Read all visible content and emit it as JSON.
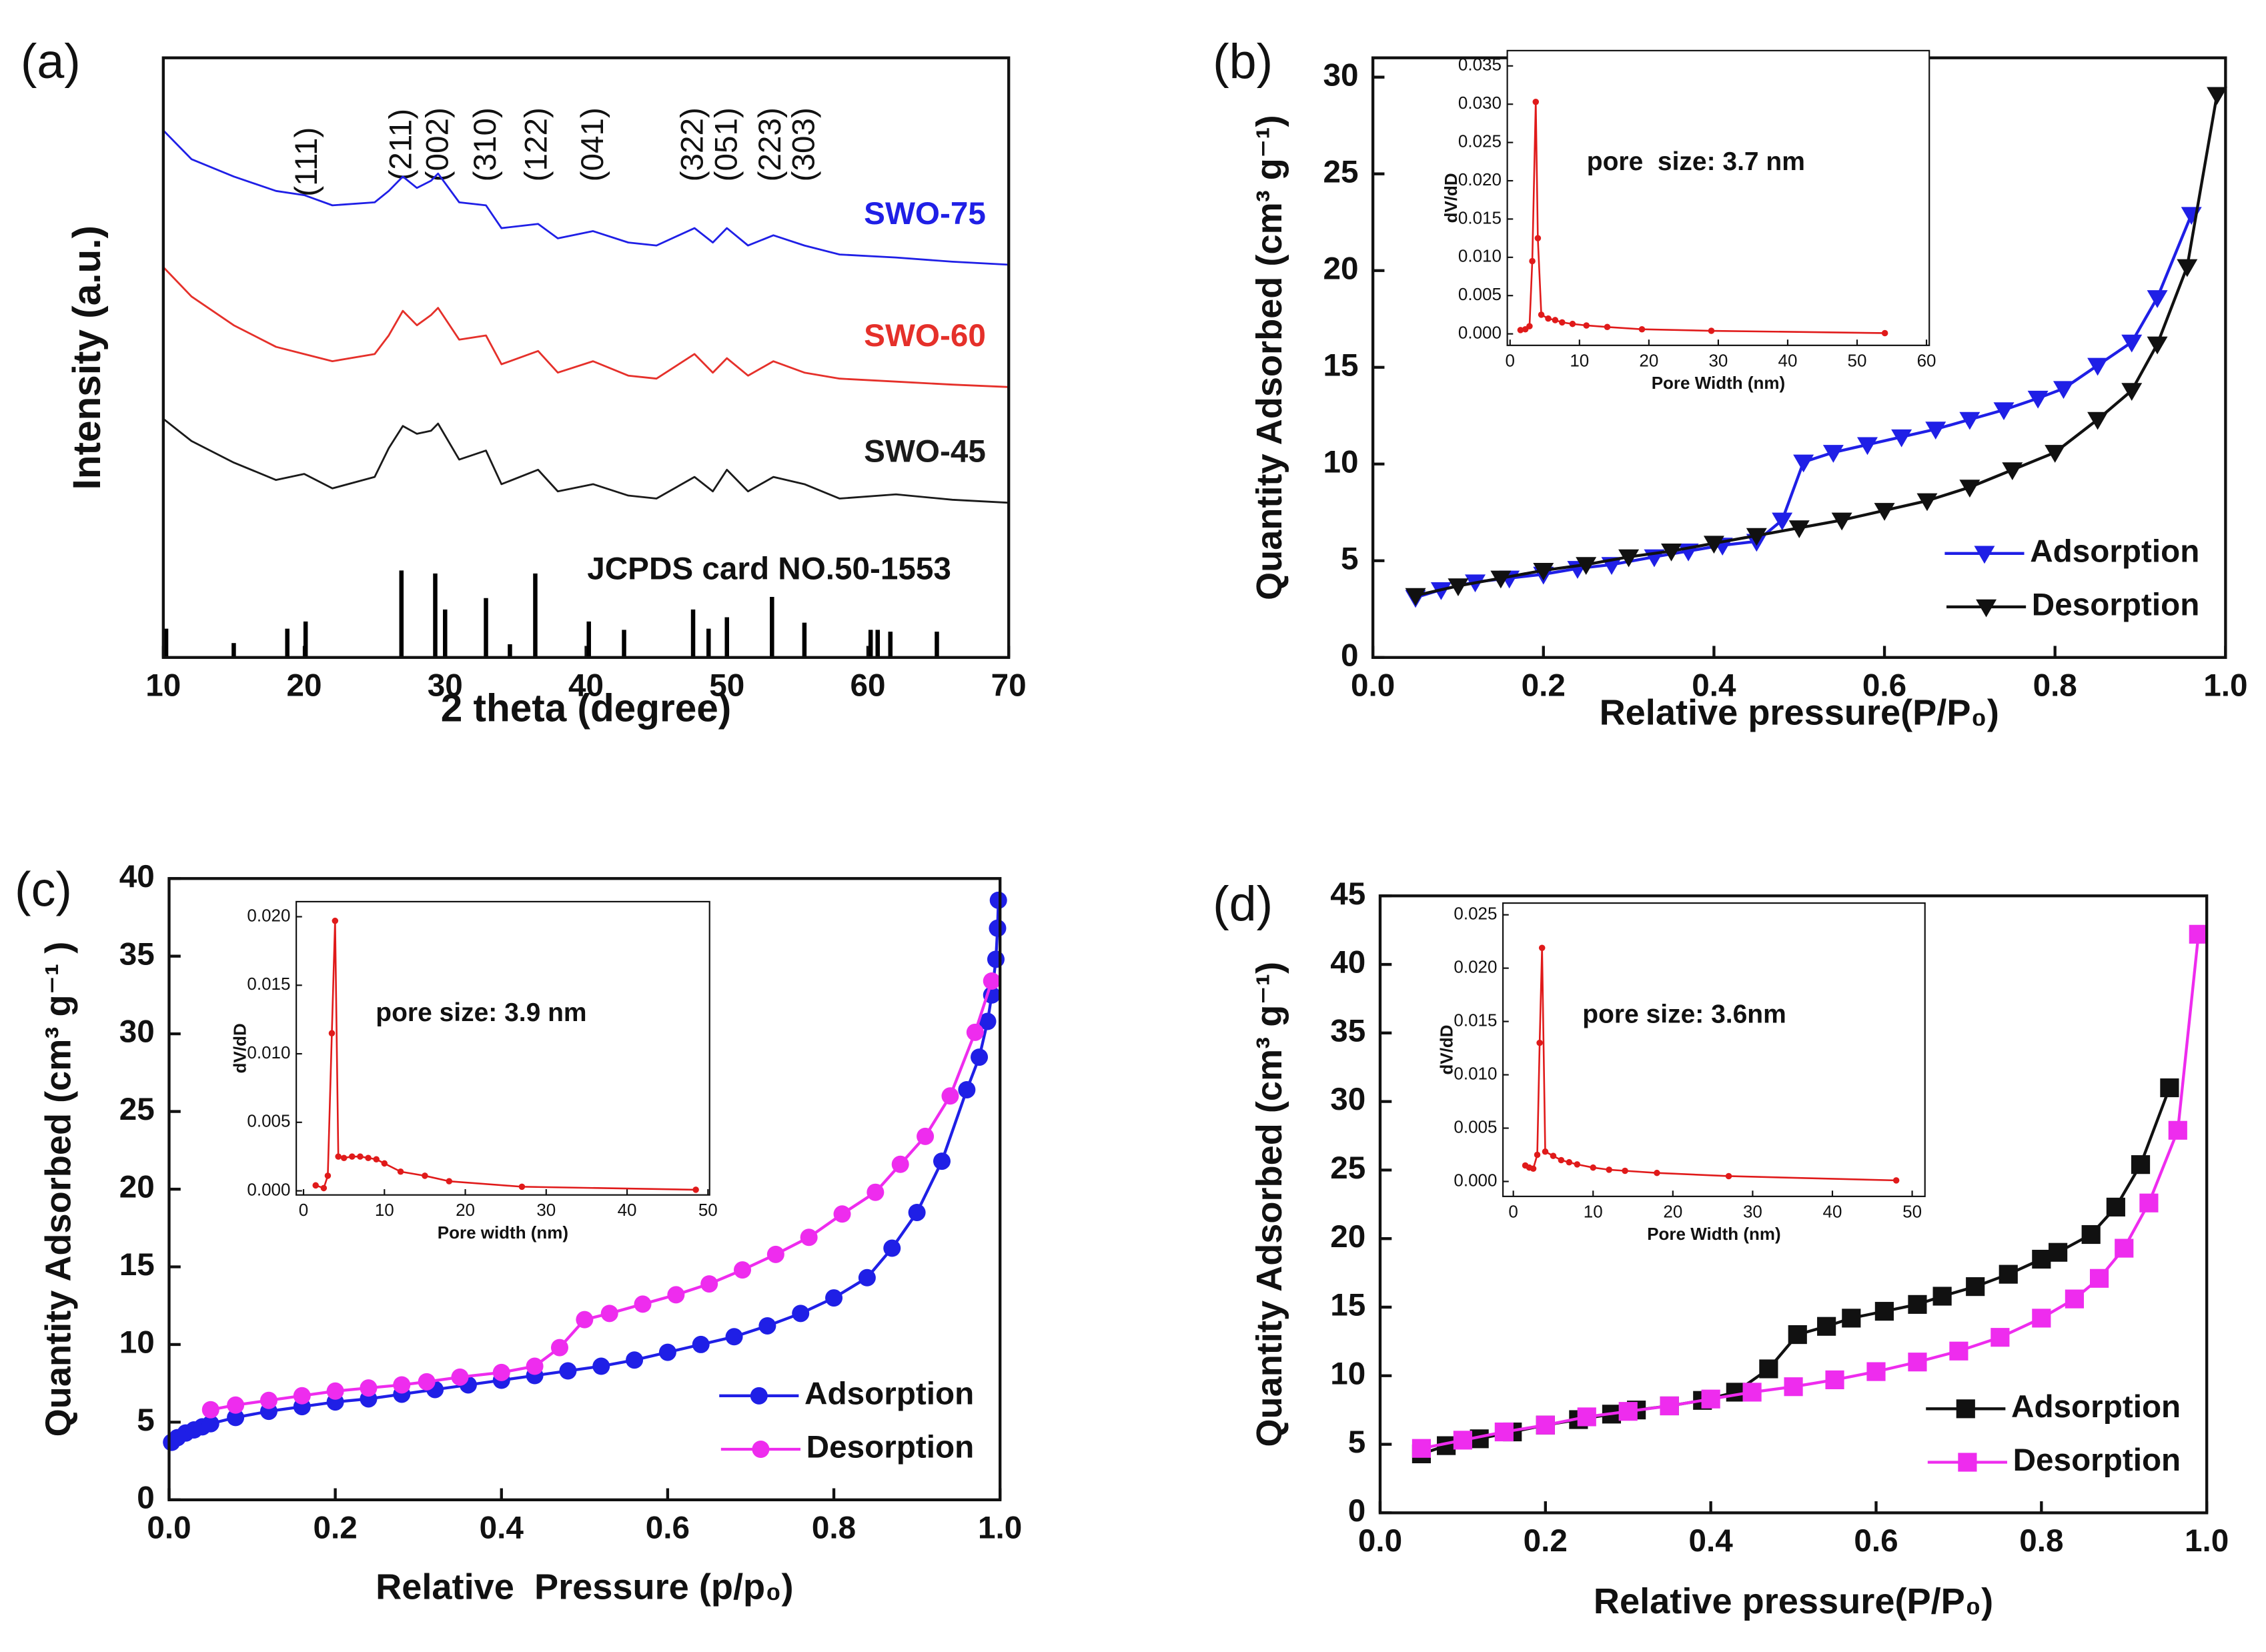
{
  "chart_data": [
    {
      "type": "line",
      "label": "(a)",
      "x_label": "2 theta (degree)",
      "y_label": "Intensity (a.u.)",
      "xlim": [
        10,
        70
      ],
      "xticks": [
        10,
        20,
        30,
        40,
        50,
        60,
        70
      ],
      "ylim": [
        0,
        100
      ],
      "x": [
        10,
        12,
        15,
        18,
        20,
        22,
        25,
        26,
        27,
        28,
        29,
        29.5,
        31,
        32.9,
        34,
        36.6,
        38,
        40.5,
        43,
        45,
        47.7,
        49,
        50,
        51.5,
        53.3,
        55.5,
        58,
        62,
        66,
        70
      ],
      "series": [
        {
          "name": "SWO-75",
          "color": "#1f1fe6",
          "values": [
            87.9,
            83.1,
            80.2,
            77.8,
            77.1,
            75.4,
            75.9,
            77.8,
            80.2,
            78.3,
            79.5,
            80.7,
            75.9,
            75.4,
            71.6,
            72.3,
            69.9,
            71.1,
            69.2,
            68.7,
            71.6,
            69.2,
            71.6,
            68.7,
            70.4,
            68.7,
            67.2,
            66.7,
            66.0,
            65.5
          ]
        },
        {
          "name": "SWO-60",
          "color": "#e5302a",
          "values": [
            65.1,
            60.2,
            55.4,
            51.8,
            50.6,
            49.4,
            50.6,
            53.7,
            57.8,
            55.4,
            57.1,
            58.3,
            53.0,
            53.7,
            48.9,
            51.1,
            47.5,
            49.4,
            47.0,
            46.5,
            50.6,
            47.5,
            49.9,
            47.0,
            49.4,
            47.5,
            46.5,
            46.0,
            45.5,
            45.1
          ]
        },
        {
          "name": "SWO-45",
          "color": "#1a1a1a",
          "values": [
            39.8,
            36.1,
            32.5,
            29.6,
            30.6,
            28.2,
            30.1,
            34.9,
            38.6,
            37.3,
            37.8,
            39.0,
            33.0,
            34.5,
            28.9,
            31.3,
            27.7,
            28.9,
            27.0,
            26.5,
            30.1,
            27.7,
            31.3,
            27.7,
            30.1,
            28.9,
            26.5,
            27.2,
            26.3,
            25.8
          ]
        }
      ],
      "reference": {
        "name": "JCPDS card NO.50-1553",
        "color": "#000000",
        "x": [
          10.2,
          15,
          18.8,
          20.1,
          26.9,
          29.3,
          30.0,
          32.9,
          34.6,
          36.4,
          40.2,
          42.7,
          47.6,
          48.7,
          50.0,
          53.2,
          55.5,
          60.2,
          60.7,
          61.6,
          64.9
        ],
        "values": [
          4.8,
          2.4,
          4.8,
          6.0,
          14.5,
          14.0,
          8.0,
          9.9,
          2.2,
          14.0,
          6.0,
          4.6,
          8.0,
          4.8,
          6.7,
          10.1,
          5.8,
          4.6,
          4.6,
          4.3,
          4.3
        ]
      },
      "annotations": [
        {
          "text": "(111)",
          "x": 20.3
        },
        {
          "text": "(211)",
          "x": 27.0
        },
        {
          "text": "(002)",
          "x": 29.6
        },
        {
          "text": "(310)",
          "x": 33.0
        },
        {
          "text": "(122)",
          "x": 36.6
        },
        {
          "text": "(041)",
          "x": 40.6
        },
        {
          "text": "(322)",
          "x": 47.7
        },
        {
          "text": "(051)",
          "x": 50.1
        },
        {
          "text": "(223)",
          "x": 53.2
        },
        {
          "text": "(303)",
          "x": 55.6
        }
      ]
    },
    {
      "type": "line",
      "label": "(b)",
      "x_label": "Relative pressure(P/P₀)",
      "y_label": "Quantity Adsorbed (cm³ g⁻¹)",
      "xlim": [
        0,
        1
      ],
      "xticks": [
        {
          "value": 0,
          "label": "0.0"
        },
        0.2,
        0.4,
        0.6,
        0.8,
        {
          "value": 1,
          "label": "1.0"
        }
      ],
      "ylim": [
        0,
        31
      ],
      "yticks": [
        0,
        5,
        10,
        15,
        20,
        25,
        30
      ],
      "legend": "lower right",
      "series": [
        {
          "name": "Adsorption",
          "color": "#1f1fe6",
          "marker": "triangle-down",
          "x": [
            0.05,
            0.08,
            0.12,
            0.16,
            0.2,
            0.24,
            0.28,
            0.33,
            0.37,
            0.41,
            0.45,
            0.48,
            0.505,
            0.54,
            0.58,
            0.62,
            0.66,
            0.7,
            0.74,
            0.78,
            0.81,
            0.85,
            0.89,
            0.92,
            0.96
          ],
          "values": [
            3.1,
            3.5,
            3.9,
            4.1,
            4.3,
            4.6,
            4.8,
            5.2,
            5.5,
            5.8,
            6.0,
            7.1,
            10.1,
            10.6,
            11.0,
            11.4,
            11.8,
            12.3,
            12.8,
            13.4,
            13.9,
            15.1,
            16.3,
            18.6,
            22.9
          ]
        },
        {
          "name": "Desorption",
          "color": "#111111",
          "marker": "triangle-down",
          "x": [
            0.05,
            0.1,
            0.15,
            0.2,
            0.25,
            0.3,
            0.35,
            0.4,
            0.45,
            0.5,
            0.55,
            0.6,
            0.65,
            0.7,
            0.75,
            0.8,
            0.85,
            0.89,
            0.92,
            0.955,
            0.99
          ],
          "values": [
            3.2,
            3.7,
            4.1,
            4.5,
            4.8,
            5.2,
            5.5,
            5.9,
            6.3,
            6.7,
            7.1,
            7.6,
            8.1,
            8.8,
            9.7,
            10.6,
            12.3,
            13.8,
            16.2,
            20.2,
            29.1
          ]
        }
      ]
    },
    {
      "type": "line",
      "x_label": "Pore Width (nm)",
      "y_label": "dV/dD",
      "annotation": "pore  size: 3.7 nm",
      "xlim": [
        -0.4,
        60.4
      ],
      "xticks": [
        0,
        10,
        20,
        30,
        40,
        50,
        60
      ],
      "ylim": [
        -0.0015,
        0.037
      ],
      "yticks": [
        {
          "value": 0,
          "label": "0.000"
        },
        0.005,
        {
          "value": 0.01,
          "label": "0.010"
        },
        0.015,
        {
          "value": 0.02,
          "label": "0.020"
        },
        0.025,
        {
          "value": 0.03,
          "label": "0.030"
        },
        0.035
      ],
      "series": [
        {
          "color": "#e01a1a",
          "marker": "circle",
          "x": [
            1.5,
            2.2,
            2.8,
            3.2,
            3.7,
            4.0,
            4.5,
            5.5,
            6.5,
            7.5,
            9,
            11,
            14,
            19,
            29,
            54
          ],
          "values": [
            0.0005,
            0.0006,
            0.001,
            0.0095,
            0.0303,
            0.0125,
            0.0025,
            0.002,
            0.0018,
            0.0015,
            0.0013,
            0.0011,
            0.0009,
            0.0006,
            0.0004,
            0.0001
          ]
        }
      ]
    },
    {
      "type": "line",
      "label": "(c)",
      "x_label": "Relative  Pressure (p/p₀)",
      "y_label": "Quantity Adsorbed (cm³ g⁻¹ )",
      "xlim": [
        0,
        1
      ],
      "xticks": [
        {
          "value": 0,
          "label": "0.0"
        },
        0.2,
        0.4,
        0.6,
        0.8,
        {
          "value": 1,
          "label": "1.0"
        }
      ],
      "ylim": [
        0,
        40
      ],
      "yticks": [
        0,
        5,
        10,
        15,
        20,
        25,
        30,
        35,
        40
      ],
      "legend": "lower right",
      "series": [
        {
          "name": "Adsorption",
          "color": "#1f1fe6",
          "marker": "circle",
          "x": [
            0.003,
            0.01,
            0.02,
            0.03,
            0.04,
            0.05,
            0.08,
            0.12,
            0.16,
            0.2,
            0.24,
            0.28,
            0.32,
            0.36,
            0.4,
            0.44,
            0.48,
            0.52,
            0.56,
            0.6,
            0.64,
            0.68,
            0.72,
            0.76,
            0.8,
            0.84,
            0.87,
            0.9,
            0.93,
            0.96,
            0.975,
            0.985,
            0.99,
            0.995,
            0.997,
            0.998
          ],
          "values": [
            3.7,
            4.0,
            4.3,
            4.5,
            4.7,
            4.9,
            5.3,
            5.7,
            6.0,
            6.3,
            6.5,
            6.8,
            7.1,
            7.4,
            7.7,
            8.0,
            8.3,
            8.6,
            9.0,
            9.5,
            10.0,
            10.5,
            11.2,
            12.0,
            13.0,
            14.3,
            16.2,
            18.5,
            21.8,
            26.4,
            28.5,
            30.8,
            32.5,
            34.8,
            36.8,
            38.6
          ]
        },
        {
          "name": "Desorption",
          "color": "#ee2cee",
          "marker": "circle",
          "x": [
            0.05,
            0.08,
            0.12,
            0.16,
            0.2,
            0.24,
            0.28,
            0.31,
            0.35,
            0.4,
            0.44,
            0.47,
            0.5,
            0.53,
            0.57,
            0.61,
            0.65,
            0.69,
            0.73,
            0.77,
            0.81,
            0.85,
            0.88,
            0.91,
            0.94,
            0.97,
            0.99
          ],
          "values": [
            5.8,
            6.1,
            6.4,
            6.7,
            7.0,
            7.2,
            7.4,
            7.6,
            7.9,
            8.2,
            8.6,
            9.8,
            11.6,
            12.0,
            12.6,
            13.2,
            13.9,
            14.8,
            15.8,
            16.9,
            18.4,
            19.8,
            21.6,
            23.4,
            26.0,
            30.1,
            33.4
          ]
        }
      ]
    },
    {
      "type": "line",
      "x_label": "Pore width (nm)",
      "y_label": "dV/dD",
      "annotation": "pore size: 3.9 nm",
      "xlim": [
        -0.9,
        50.2
      ],
      "xticks": [
        0,
        10,
        20,
        30,
        40,
        50
      ],
      "ylim": [
        -0.0003,
        0.0211
      ],
      "yticks": [
        {
          "value": 0,
          "label": "0.000"
        },
        0.005,
        {
          "value": 0.01,
          "label": "0.010"
        },
        0.015,
        {
          "value": 0.02,
          "label": "0.020"
        }
      ],
      "series": [
        {
          "color": "#e01a1a",
          "marker": "circle",
          "x": [
            1.5,
            2.5,
            3,
            3.5,
            3.9,
            4.3,
            5,
            6,
            7,
            8,
            9,
            10,
            12,
            15,
            18,
            27,
            48.5
          ],
          "values": [
            0.0004,
            0.0002,
            0.0011,
            0.0115,
            0.0197,
            0.0025,
            0.0024,
            0.0025,
            0.0025,
            0.0024,
            0.0023,
            0.002,
            0.0014,
            0.0011,
            0.0007,
            0.0003,
            8e-05
          ]
        }
      ]
    },
    {
      "type": "line",
      "label": "(d)",
      "x_label": "Relative pressure(P/P₀)",
      "y_label": "Quantity Adsorbed (cm³ g⁻¹)",
      "xlim": [
        0,
        1
      ],
      "xticks": [
        {
          "value": 0,
          "label": "0.0"
        },
        0.2,
        0.4,
        0.6,
        0.8,
        {
          "value": 1,
          "label": "1.0"
        }
      ],
      "ylim": [
        0,
        45
      ],
      "yticks": [
        0,
        5,
        10,
        15,
        20,
        25,
        30,
        35,
        40,
        45
      ],
      "legend": "lower right",
      "series": [
        {
          "name": "Adsorption",
          "color": "#111111",
          "marker": "square",
          "x": [
            0.05,
            0.08,
            0.12,
            0.16,
            0.2,
            0.24,
            0.28,
            0.31,
            0.35,
            0.39,
            0.43,
            0.47,
            0.505,
            0.54,
            0.57,
            0.61,
            0.65,
            0.68,
            0.72,
            0.76,
            0.8,
            0.82,
            0.86,
            0.89,
            0.92,
            0.955
          ],
          "values": [
            4.3,
            4.9,
            5.4,
            5.9,
            6.4,
            6.8,
            7.2,
            7.5,
            7.8,
            8.2,
            8.8,
            10.5,
            13.0,
            13.6,
            14.2,
            14.7,
            15.2,
            15.8,
            16.5,
            17.4,
            18.5,
            19.0,
            20.3,
            22.3,
            25.4,
            31.0
          ]
        },
        {
          "name": "Desorption",
          "color": "#ee2cee",
          "marker": "square",
          "x": [
            0.05,
            0.1,
            0.15,
            0.2,
            0.25,
            0.3,
            0.35,
            0.4,
            0.45,
            0.5,
            0.55,
            0.6,
            0.65,
            0.7,
            0.75,
            0.8,
            0.84,
            0.87,
            0.9,
            0.93,
            0.965,
            0.99
          ],
          "values": [
            4.7,
            5.3,
            5.9,
            6.4,
            7.0,
            7.4,
            7.8,
            8.3,
            8.8,
            9.2,
            9.7,
            10.3,
            11.0,
            11.8,
            12.8,
            14.2,
            15.6,
            17.1,
            19.3,
            22.6,
            27.9,
            42.2
          ]
        }
      ]
    },
    {
      "type": "line",
      "x_label": "Pore Width (nm)",
      "y_label": "dV/dD",
      "annotation": "pore size: 3.6nm",
      "xlim": [
        -1.3,
        51.6
      ],
      "xticks": [
        0,
        10,
        20,
        30,
        40,
        50
      ],
      "ylim": [
        -0.0014,
        0.0261
      ],
      "yticks": [
        {
          "value": 0,
          "label": "0.000"
        },
        0.005,
        {
          "value": 0.01,
          "label": "0.010"
        },
        0.015,
        {
          "value": 0.02,
          "label": "0.020"
        },
        0.025
      ],
      "series": [
        {
          "color": "#e01a1a",
          "marker": "circle",
          "x": [
            1.5,
            2,
            2.5,
            3,
            3.3,
            3.6,
            4,
            5,
            6,
            7,
            8,
            10,
            12,
            14,
            18,
            27,
            48
          ],
          "values": [
            0.0015,
            0.0013,
            0.0012,
            0.0025,
            0.013,
            0.0219,
            0.0028,
            0.0024,
            0.002,
            0.0018,
            0.0016,
            0.0013,
            0.0011,
            0.001,
            0.0008,
            0.0005,
            0.0001
          ]
        }
      ]
    }
  ]
}
